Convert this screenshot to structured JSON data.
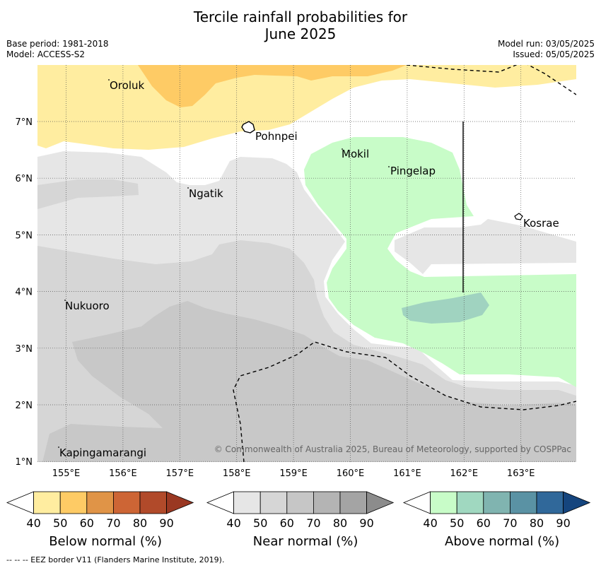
{
  "title_line1": "Tercile rainfall probabilities for",
  "title_line2": "June 2025",
  "base_period": "Base period: 1981-2018",
  "model": "Model: ACCESS-S2",
  "model_run": "Model run: 03/05/2025",
  "issued": "Issued: 05/05/2025",
  "copyright": "© Commonwealth of Australia 2025, Bureau of Meteorology, supported by COSPPac",
  "footer": "-- -- -- EEZ border V11 (Flanders Marine Institute, 2019).",
  "lon_labels": [
    "155°E",
    "156°E",
    "157°E",
    "158°E",
    "159°E",
    "160°E",
    "161°E",
    "162°E",
    "163°E"
  ],
  "lat_labels": [
    "7°N",
    "6°N",
    "5°N",
    "4°N",
    "3°N",
    "2°N",
    "1°N"
  ],
  "places": [
    "Oroluk",
    "Pohnpei",
    "Mokil",
    "Pingelap",
    "Ngatik",
    "Kosrae",
    "Nukuoro",
    "Kapingamarangi"
  ],
  "colorbars": [
    {
      "title": "Below normal (%)",
      "ticks": [
        "40",
        "50",
        "60",
        "70",
        "80",
        "90"
      ],
      "colors": [
        "#ffffff",
        "#ffeda0",
        "#fecb65",
        "#e09447",
        "#cd6535",
        "#b14a2a",
        "#9a3822"
      ]
    },
    {
      "title": "Near normal (%)",
      "ticks": [
        "40",
        "50",
        "60",
        "70",
        "80",
        "90"
      ],
      "colors": [
        "#ffffff",
        "#e6e6e6",
        "#d6d6d6",
        "#c6c6c6",
        "#b4b4b4",
        "#a4a4a4",
        "#8c8c8c"
      ]
    },
    {
      "title": "Above normal (%)",
      "ticks": [
        "40",
        "50",
        "60",
        "70",
        "80",
        "90"
      ],
      "colors": [
        "#ffffff",
        "#c8fcc8",
        "#a0d8c0",
        "#80b4b0",
        "#5a92a4",
        "#30689a",
        "#15457e"
      ]
    }
  ]
}
